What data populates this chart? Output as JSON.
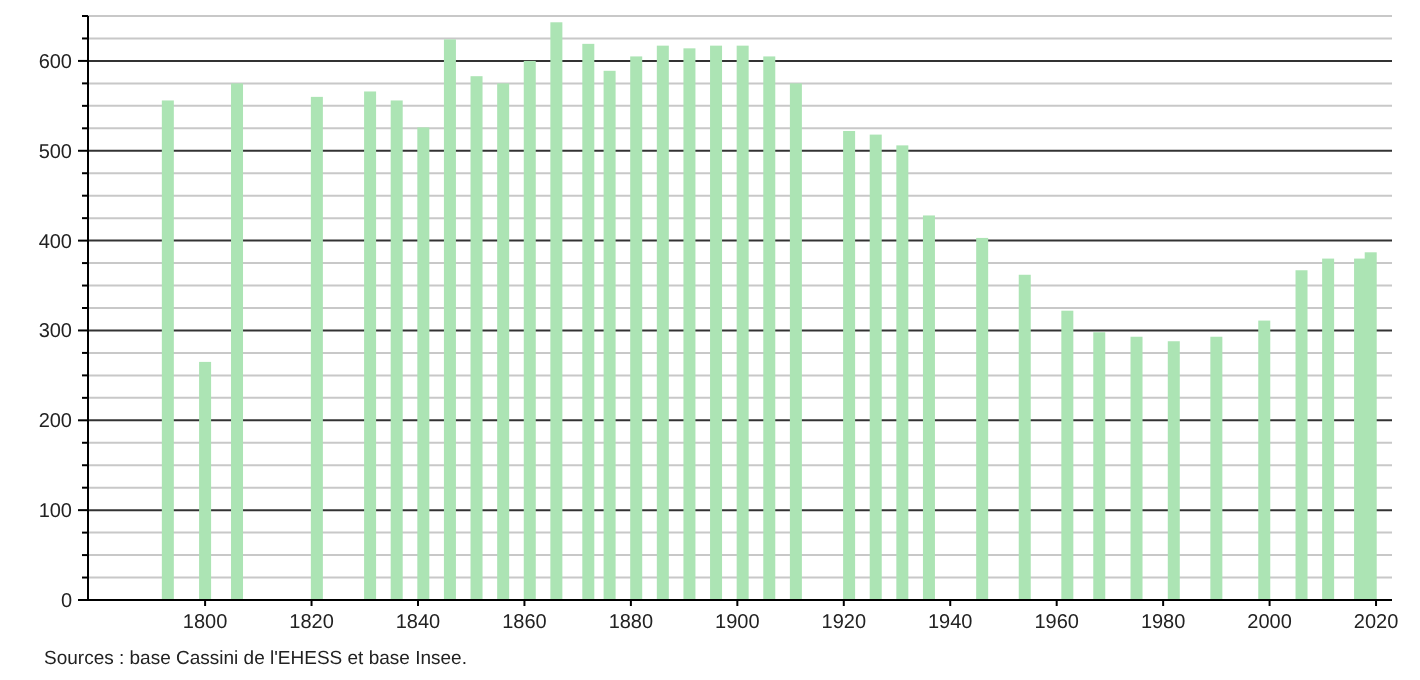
{
  "chart_data": {
    "type": "bar",
    "x": [
      1793,
      1800,
      1806,
      1821,
      1831,
      1836,
      1841,
      1846,
      1851,
      1856,
      1861,
      1866,
      1872,
      1876,
      1881,
      1886,
      1891,
      1896,
      1901,
      1906,
      1911,
      1921,
      1926,
      1931,
      1936,
      1946,
      1954,
      1962,
      1968,
      1975,
      1982,
      1990,
      1999,
      2006,
      2011,
      2017,
      2019
    ],
    "values": [
      556,
      265,
      575,
      560,
      566,
      556,
      526,
      624,
      583,
      575,
      600,
      643,
      619,
      589,
      605,
      617,
      614,
      617,
      617,
      605,
      575,
      522,
      518,
      506,
      428,
      403,
      362,
      322,
      298,
      293,
      288,
      293,
      311,
      367,
      380,
      380,
      387
    ],
    "color": "#ace4b4",
    "xlim": [
      1778,
      2023
    ],
    "xticks": [
      1800,
      1820,
      1840,
      1860,
      1880,
      1900,
      1920,
      1940,
      1960,
      1980,
      2000,
      2020
    ],
    "ylim": [
      0,
      650
    ],
    "yticks": [
      0,
      {
        "value": 25,
        "label": null
      },
      {
        "value": 50,
        "label": null
      },
      {
        "value": 75,
        "label": null
      },
      100,
      {
        "value": 125,
        "label": null
      },
      {
        "value": 150,
        "label": null
      },
      {
        "value": 175,
        "label": null
      },
      200,
      {
        "value": 225,
        "label": null
      },
      {
        "value": 250,
        "label": null
      },
      {
        "value": 275,
        "label": null
      },
      300,
      {
        "value": 325,
        "label": null
      },
      {
        "value": 350,
        "label": null
      },
      {
        "value": 375,
        "label": null
      },
      400,
      {
        "value": 425,
        "label": null
      },
      {
        "value": 450,
        "label": null
      },
      {
        "value": 475,
        "label": null
      },
      500,
      {
        "value": 525,
        "label": null
      },
      {
        "value": 550,
        "label": null
      },
      {
        "value": 575,
        "label": null
      },
      600,
      {
        "value": 625,
        "label": null
      },
      {
        "value": 650,
        "label": null
      }
    ],
    "grid": "y",
    "legend": false,
    "annotations": [
      "Sources : base Cassini de l'EHESS et base Insee."
    ]
  }
}
